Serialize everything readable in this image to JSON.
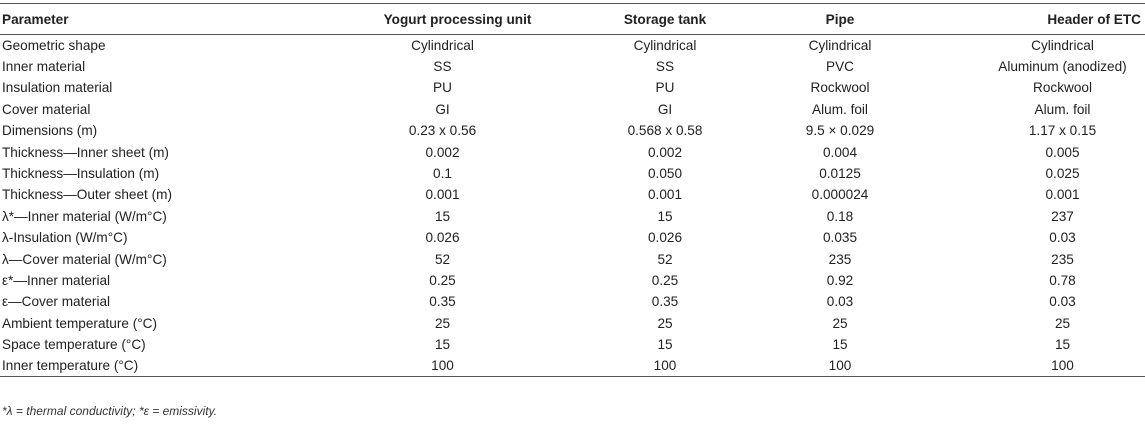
{
  "table": {
    "headers": [
      "Parameter",
      "Yogurt processing unit",
      "Storage tank",
      "Pipe",
      "Header of ETC"
    ],
    "rows": [
      [
        "Geometric shape",
        "Cylindrical",
        "Cylindrical",
        "Cylindrical",
        "Cylindrical"
      ],
      [
        "Inner material",
        "SS",
        "SS",
        "PVC",
        "Aluminum (anodized)"
      ],
      [
        "Insulation material",
        "PU",
        "PU",
        "Rockwool",
        "Rockwool"
      ],
      [
        "Cover material",
        "GI",
        "GI",
        "Alum. foil",
        "Alum. foil"
      ],
      [
        "Dimensions (m)",
        "0.23 x 0.56",
        "0.568 x 0.58",
        "9.5 × 0.029",
        "1.17 x 0.15"
      ],
      [
        "Thickness—Inner sheet (m)",
        "0.002",
        "0.002",
        "0.004",
        "0.005"
      ],
      [
        "Thickness—Insulation (m)",
        "0.1",
        "0.050",
        "0.0125",
        "0.025"
      ],
      [
        "Thickness—Outer sheet (m)",
        "0.001",
        "0.001",
        "0.000024",
        "0.001"
      ],
      [
        "λ*—Inner material (W/m°C)",
        "15",
        "15",
        "0.18",
        "237"
      ],
      [
        "λ-Insulation (W/m°C)",
        "0.026",
        "0.026",
        "0.035",
        "0.03"
      ],
      [
        "λ—Cover material (W/m°C)",
        "52",
        "52",
        "235",
        "235"
      ],
      [
        "ε*—Inner material",
        "0.25",
        "0.25",
        "0.92",
        "0.78"
      ],
      [
        "ε—Cover material",
        "0.35",
        "0.35",
        "0.03",
        "0.03"
      ],
      [
        "Ambient temperature (°C)",
        "25",
        "25",
        "25",
        "25"
      ],
      [
        "Space temperature (°C)",
        "15",
        "15",
        "15",
        "15"
      ],
      [
        "Inner temperature (°C)",
        "100",
        "100",
        "100",
        "100"
      ]
    ]
  },
  "footnote": "*λ = thermal conductivity; *ε = emissivity."
}
